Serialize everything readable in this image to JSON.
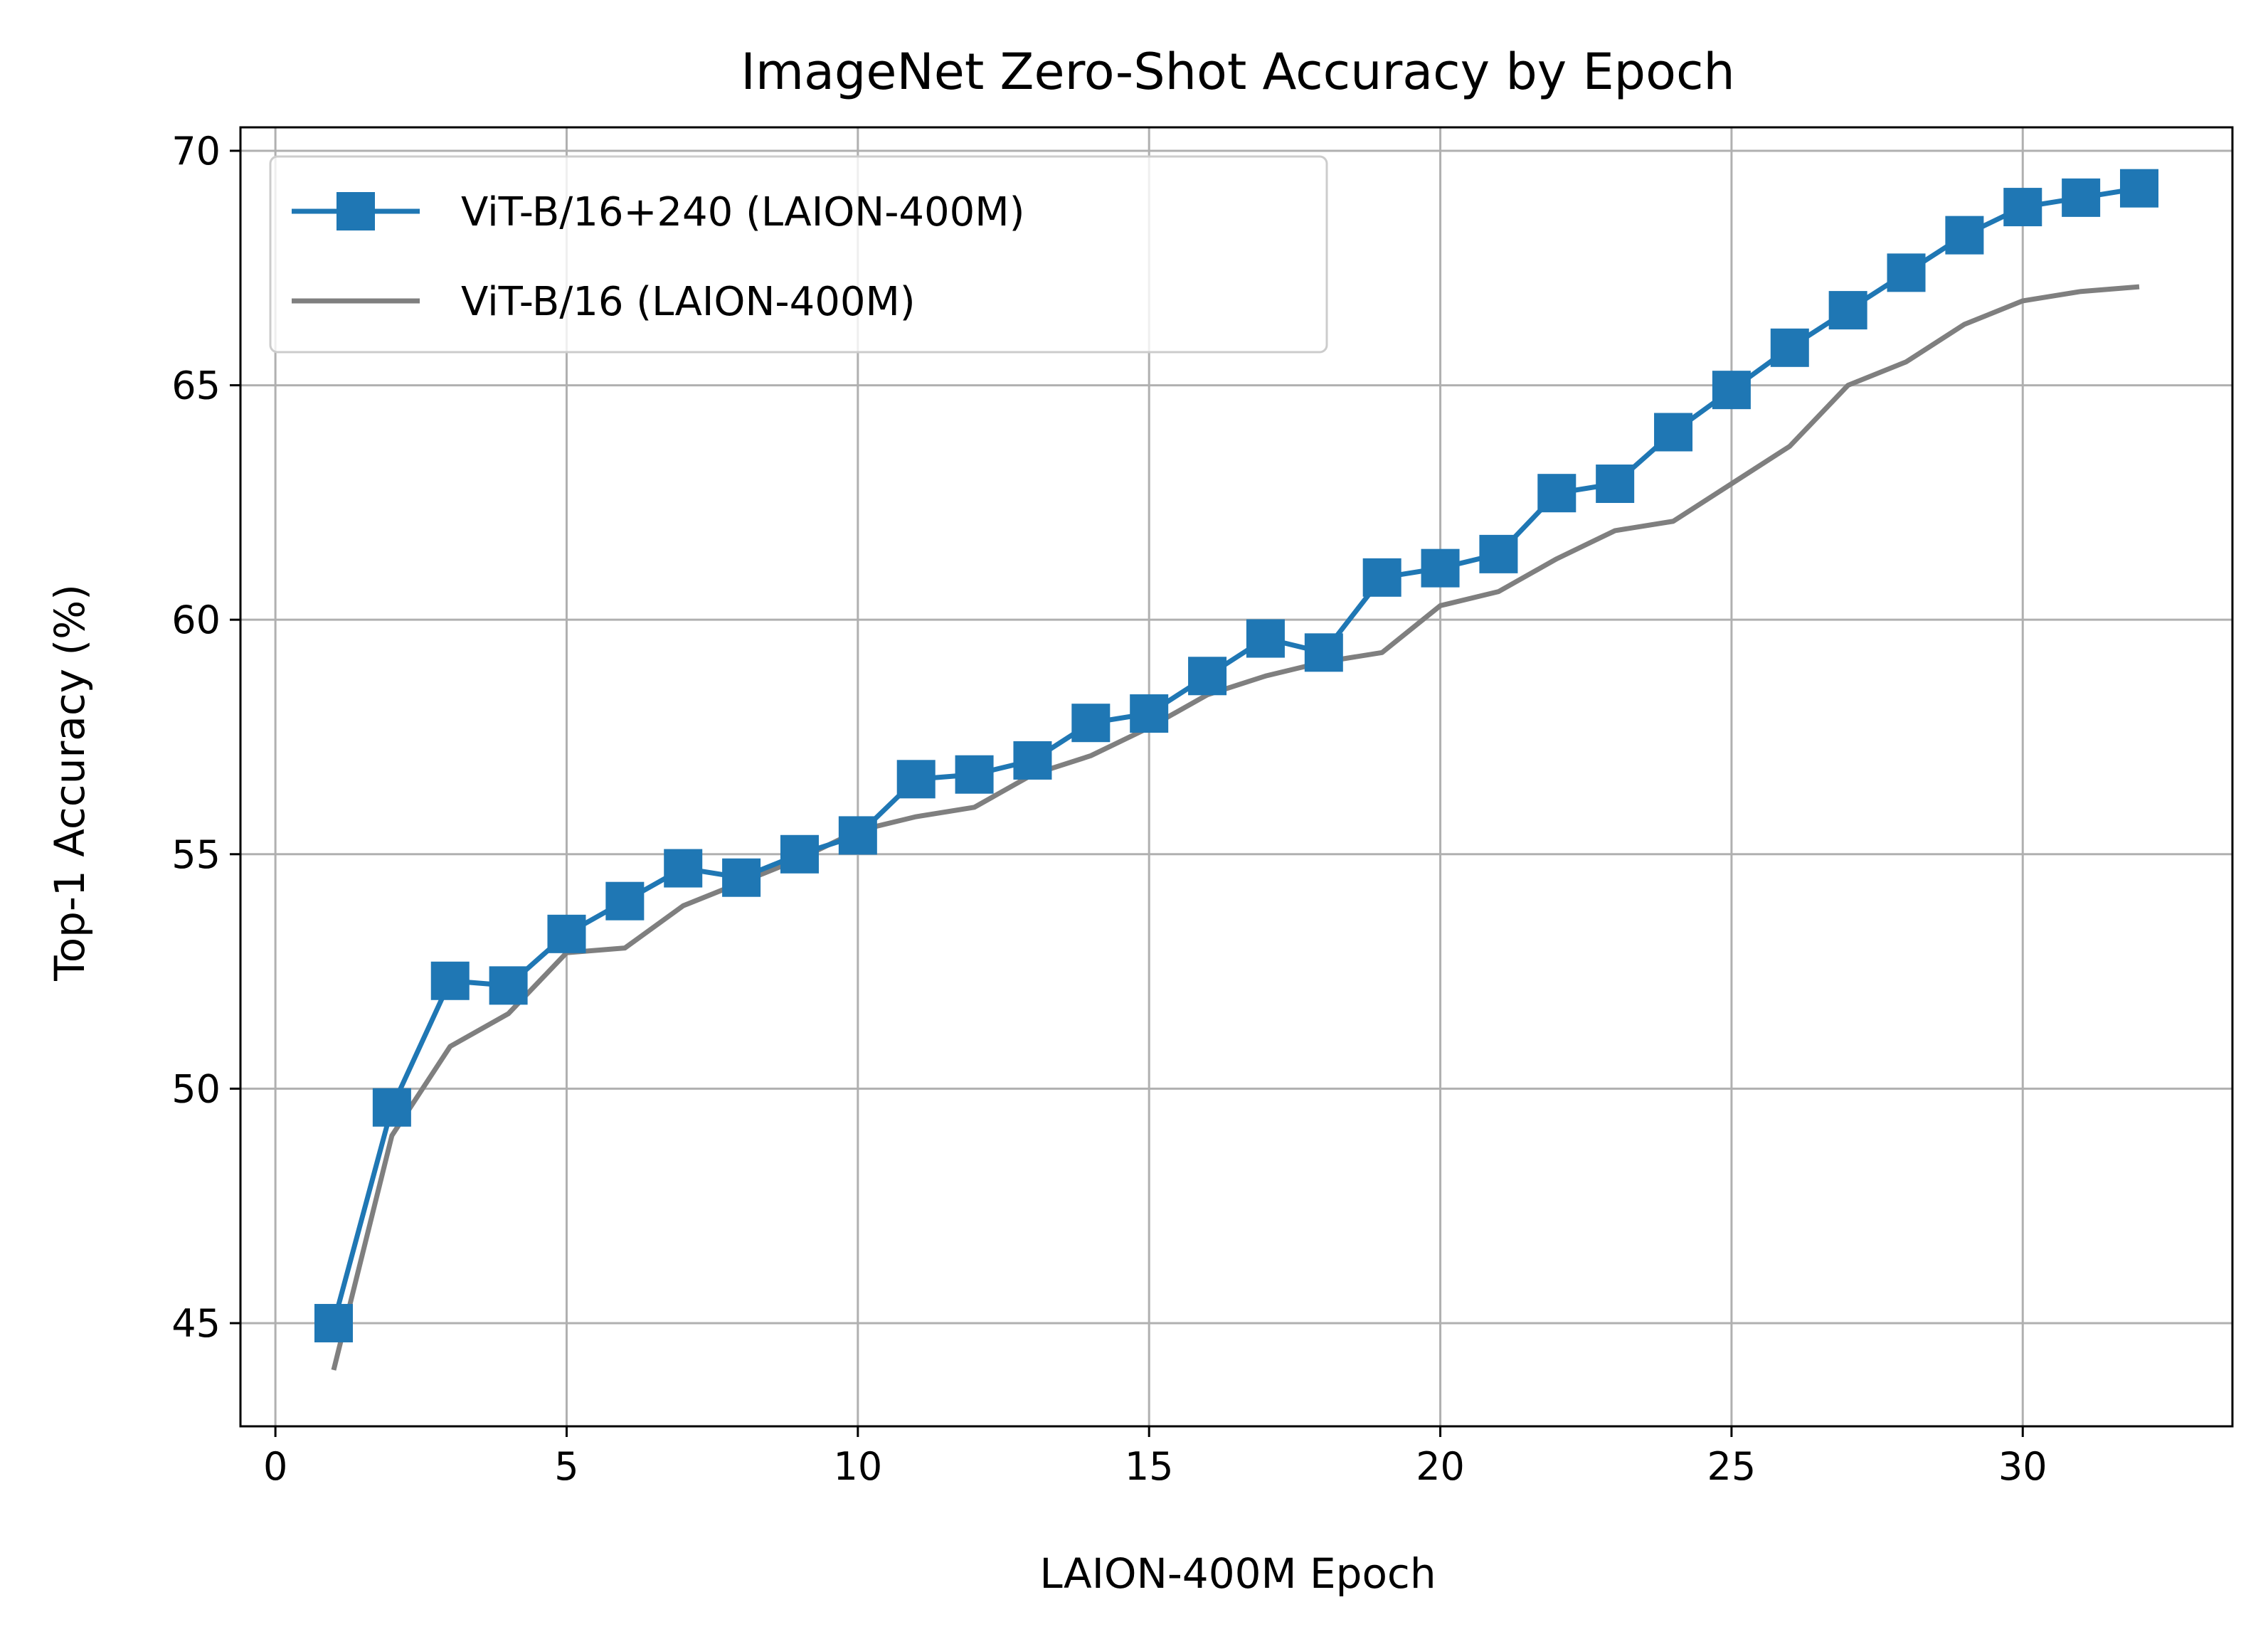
{
  "chart_data": {
    "type": "line",
    "title": "ImageNet Zero-Shot Accuracy by Epoch",
    "xlabel": "LAION-400M Epoch",
    "ylabel": "Top-1 Accuracy (%)",
    "xlim": [
      -0.6,
      33.6
    ],
    "ylim": [
      42.8,
      70.5
    ],
    "xticks": [
      0,
      5,
      10,
      15,
      20,
      25,
      30
    ],
    "yticks": [
      45,
      50,
      55,
      60,
      65,
      70
    ],
    "grid": true,
    "legend_position": "top-left",
    "series": [
      {
        "name": "ViT-B/16+240 (LAION-400M)",
        "color": "#1f77b4",
        "marker": "square",
        "x": [
          1,
          2,
          3,
          4,
          5,
          6,
          7,
          8,
          9,
          10,
          11,
          12,
          13,
          14,
          15,
          16,
          17,
          18,
          19,
          20,
          21,
          22,
          23,
          24,
          25,
          26,
          27,
          28,
          29,
          30,
          31,
          32
        ],
        "values": [
          45.0,
          49.6,
          52.3,
          52.2,
          53.3,
          54.0,
          54.7,
          54.5,
          55.0,
          55.4,
          56.6,
          56.7,
          57.0,
          57.8,
          58.0,
          58.8,
          59.6,
          59.3,
          60.9,
          61.1,
          61.4,
          62.7,
          62.9,
          64.0,
          64.9,
          65.8,
          66.6,
          67.4,
          68.2,
          68.8,
          69.0,
          69.2
        ]
      },
      {
        "name": "ViT-B/16 (LAION-400M)",
        "color": "#7f7f7f",
        "marker": "none",
        "x": [
          1,
          2,
          3,
          4,
          5,
          6,
          7,
          8,
          9,
          10,
          11,
          12,
          13,
          14,
          15,
          16,
          17,
          18,
          19,
          20,
          21,
          22,
          23,
          24,
          25,
          26,
          27,
          28,
          29,
          30,
          31,
          32
        ],
        "values": [
          44.0,
          49.0,
          50.9,
          51.6,
          52.9,
          53.0,
          53.9,
          54.4,
          54.9,
          55.5,
          55.8,
          56.0,
          56.7,
          57.1,
          57.7,
          58.4,
          58.8,
          59.1,
          59.3,
          60.3,
          60.6,
          61.3,
          61.9,
          62.1,
          62.9,
          63.7,
          65.0,
          65.5,
          66.3,
          66.8,
          67.0,
          67.1
        ]
      }
    ]
  }
}
